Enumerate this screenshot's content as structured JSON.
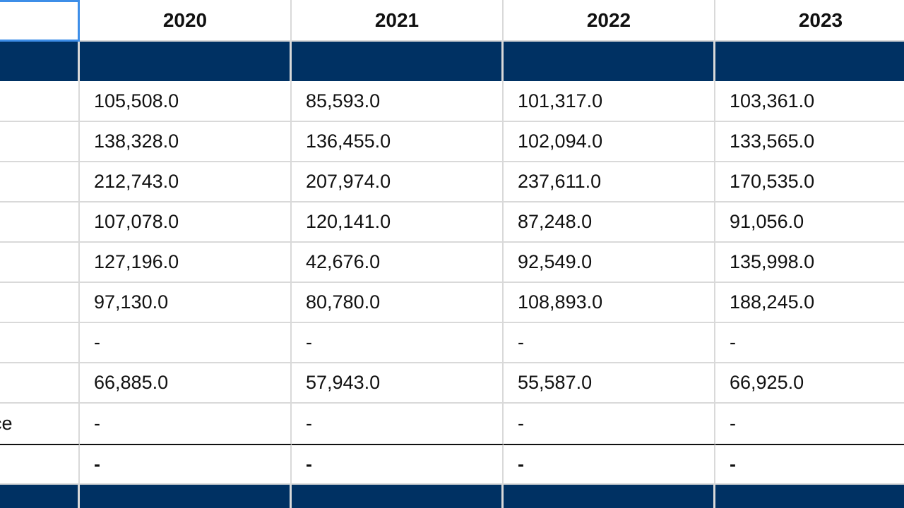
{
  "table": {
    "header": {
      "corner": "",
      "columns": [
        "2020",
        "2021",
        "2022",
        "2023"
      ]
    },
    "rows": [
      {
        "label": "",
        "values": [
          "105,508.0",
          "85,593.0",
          "101,317.0",
          "103,361.0"
        ]
      },
      {
        "label": "",
        "values": [
          "138,328.0",
          "136,455.0",
          "102,094.0",
          "133,565.0"
        ]
      },
      {
        "label": "",
        "values": [
          "212,743.0",
          "207,974.0",
          "237,611.0",
          "170,535.0"
        ]
      },
      {
        "label": "",
        "values": [
          "107,078.0",
          "120,141.0",
          "87,248.0",
          "91,056.0"
        ]
      },
      {
        "label": "",
        "values": [
          "127,196.0",
          "42,676.0",
          "92,549.0",
          "135,998.0"
        ]
      },
      {
        "label": "",
        "values": [
          "97,130.0",
          "80,780.0",
          "108,893.0",
          "188,245.0"
        ]
      },
      {
        "label": "",
        "values": [
          "-",
          "-",
          "-",
          "-"
        ]
      },
      {
        "label": "",
        "values": [
          "66,885.0",
          "57,943.0",
          "55,587.0",
          "66,925.0"
        ]
      },
      {
        "label": "nce",
        "values": [
          "-",
          "-",
          "-",
          "-"
        ]
      }
    ],
    "total_row": {
      "label": "",
      "values": [
        "-",
        "-",
        "-",
        "-"
      ]
    }
  },
  "colors": {
    "band": "#003163",
    "grid": "#d9d9d9",
    "selection": "#3d8ee8"
  }
}
